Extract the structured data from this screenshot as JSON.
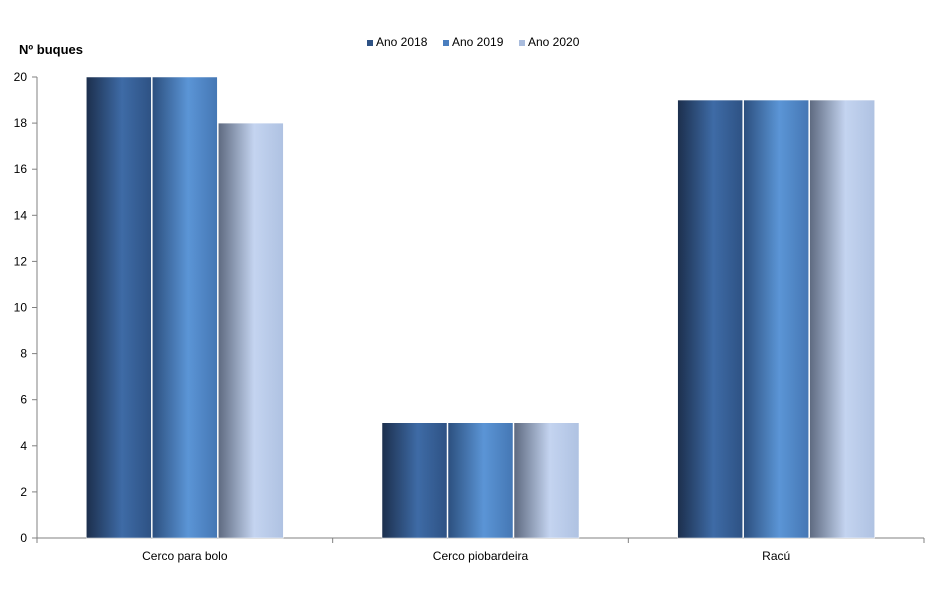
{
  "chart_data": {
    "type": "bar",
    "ylabel": "Nº  buques",
    "categories": [
      "Cerco para bolo",
      "Cerco piobardeira",
      "Racú"
    ],
    "series": [
      {
        "name": "Ano 2018",
        "values": [
          20,
          5,
          19
        ],
        "color": "#2E5284"
      },
      {
        "name": "Ano 2019",
        "values": [
          20,
          5,
          19
        ],
        "color": "#4A7EBF"
      },
      {
        "name": "Ano 2020",
        "values": [
          18,
          5,
          19
        ],
        "color": "#A9BCDD"
      }
    ],
    "ylim": [
      0,
      20
    ],
    "yticks": [
      0,
      2,
      4,
      6,
      8,
      10,
      12,
      14,
      16,
      18,
      20
    ],
    "grid": false,
    "legend_position": "top-center"
  }
}
